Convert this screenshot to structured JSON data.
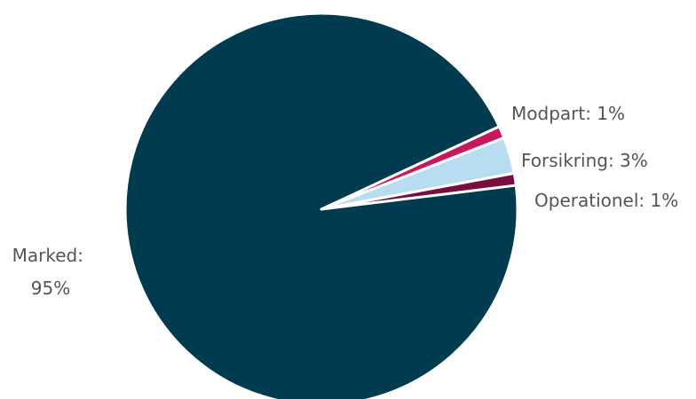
{
  "chart_data": {
    "type": "pie",
    "title": "",
    "slices": [
      {
        "label": "Modpart",
        "value": 1,
        "display": "Modpart: 1%",
        "color": "#c8175d"
      },
      {
        "label": "Forsikring",
        "value": 3,
        "display": "Forsikring: 3%",
        "color": "#b9ddf0"
      },
      {
        "label": "Operationel",
        "value": 1,
        "display": "Operationel: 1%",
        "color": "#7a0d3f"
      },
      {
        "label": "Marked",
        "value": 95,
        "display_lines": [
          "Marked:",
          "95%"
        ],
        "color": "#003b50"
      }
    ],
    "legend": "none"
  }
}
